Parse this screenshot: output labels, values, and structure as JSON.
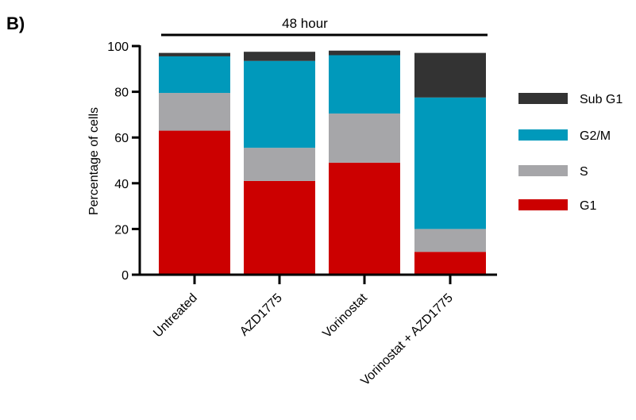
{
  "panel_label": "B)",
  "colors": {
    "sub_g1": "#333333",
    "g2m": "#0099bb",
    "s": "#a6a6a9",
    "g1": "#cc0000"
  },
  "chart_data": {
    "type": "bar",
    "stacked": true,
    "title": "48 hour",
    "xlabel": "",
    "ylabel": "Percentage of cells",
    "ylim": [
      0,
      100
    ],
    "yticks": [
      0,
      20,
      40,
      60,
      80,
      100
    ],
    "categories": [
      "Untreated",
      "AZD1775",
      "Vorinostat",
      "Vorinostat + AZD1775"
    ],
    "series": [
      {
        "name": "G1",
        "color": "#cc0000",
        "values": [
          63,
          41,
          49,
          10
        ]
      },
      {
        "name": "S",
        "color": "#a6a6a9",
        "values": [
          16.5,
          14.5,
          21.5,
          10
        ]
      },
      {
        "name": "G2/M",
        "color": "#0099bb",
        "values": [
          16,
          38,
          25.5,
          57.5
        ]
      },
      {
        "name": "Sub G1",
        "color": "#333333",
        "values": [
          1.5,
          4,
          2,
          19.5
        ]
      }
    ],
    "legend": {
      "placement": "right",
      "order": [
        "Sub G1",
        "G2/M",
        "S",
        "G1"
      ]
    },
    "grid": false
  }
}
